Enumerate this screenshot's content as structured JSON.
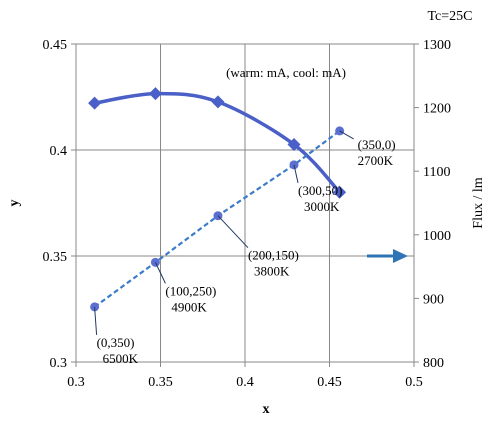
{
  "chart_data": {
    "type": "line",
    "corner_note": "Tc=25C",
    "annotation": "(warm: mA, cool: mA)",
    "xlabel": "x",
    "ylabel": "y",
    "y2label": "Flux / lm",
    "xlim": [
      0.3,
      0.5
    ],
    "ylim": [
      0.3,
      0.45
    ],
    "y2lim": [
      800,
      1300
    ],
    "x_ticks": [
      "0.3",
      "0.35",
      "0.4",
      "0.45",
      "0.5"
    ],
    "y_ticks": [
      "0.3",
      "0.35",
      "0.4",
      "0.45"
    ],
    "y2_ticks": [
      "800",
      "900",
      "1000",
      "1100",
      "1200",
      "1300"
    ],
    "grid": true,
    "series": [
      {
        "axis": "y2",
        "style": "solid",
        "marker": "diamond",
        "color": "#4a5fc7",
        "x": [
          0.311,
          0.347,
          0.384,
          0.429,
          0.456
        ],
        "y": [
          1207,
          1222,
          1209,
          1142,
          1067
        ]
      },
      {
        "axis": "y",
        "style": "dashed",
        "marker": "circle",
        "color": "#3a7cc8",
        "marker_color": "#5b6fd0",
        "x": [
          0.311,
          0.347,
          0.384,
          0.429,
          0.456
        ],
        "y": [
          0.326,
          0.347,
          0.369,
          0.393,
          0.409
        ]
      }
    ],
    "point_labels": [
      {
        "lines": [
          "(0,350)",
          "6500K"
        ]
      },
      {
        "lines": [
          "(100,250)",
          "4900K"
        ]
      },
      {
        "lines": [
          "(200,150)",
          "3800K"
        ]
      },
      {
        "lines": [
          "(300,50)",
          "3000K"
        ]
      },
      {
        "lines": [
          "(350,0)",
          "2700K"
        ]
      }
    ],
    "arrow_color": "#2e75b6"
  }
}
